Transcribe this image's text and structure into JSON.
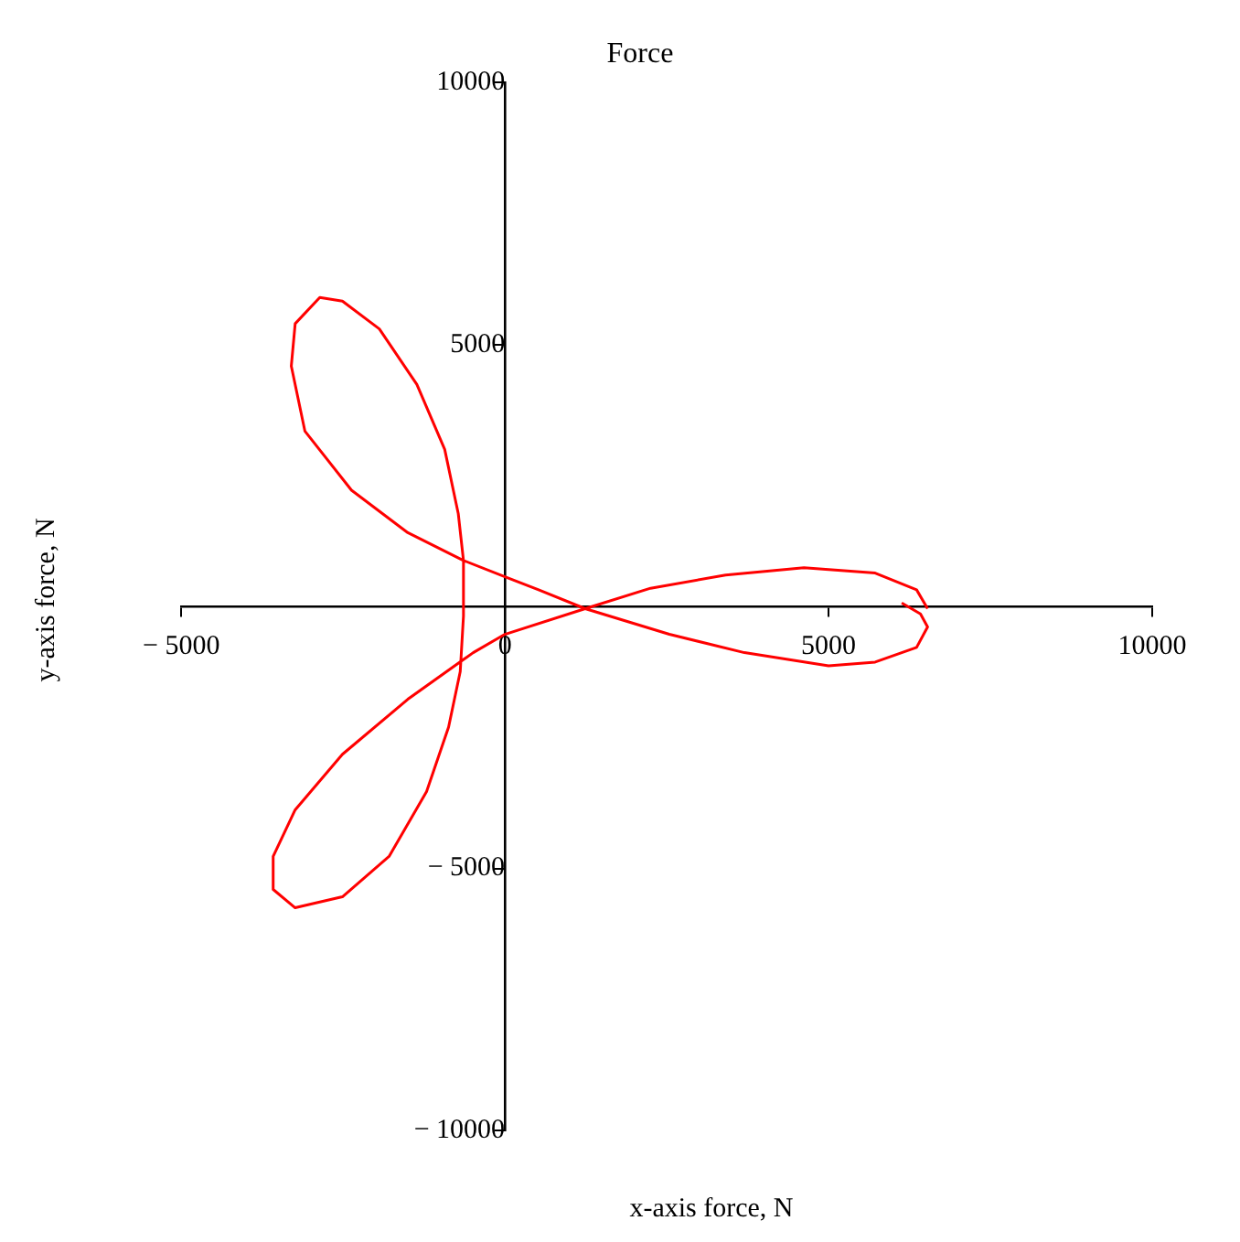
{
  "chart_data": {
    "type": "line",
    "title": "Force",
    "xlabel": "x-axis force, N",
    "ylabel": "y-axis force, N",
    "xlim": [
      -5000,
      10000
    ],
    "ylim": [
      -10000,
      10000
    ],
    "xticks": [
      {
        "value": -5000,
        "label": "− 5000"
      },
      0,
      5000,
      10000
    ],
    "yticks": [
      {
        "value": -10000,
        "label": "− 10000"
      },
      {
        "value": -5000,
        "label": "− 5000"
      },
      {
        "value": 0,
        "label": null
      },
      5000,
      10000
    ],
    "grid": false,
    "legend": false,
    "marker": "none",
    "line_style": "solid",
    "series": [
      {
        "color": "#ff0000",
        "x": [
          6130,
          6420,
          6530,
          6360,
          5720,
          5000,
          3700,
          2540,
          1240,
          520,
          0,
          -640,
          -1500,
          -2370,
          -3090,
          -3300,
          -3240,
          -2860,
          -2510,
          -1940,
          -1360,
          -930,
          -720,
          -640,
          -640,
          -690,
          -870,
          -1210,
          -1790,
          -2510,
          -3240,
          -3580,
          -3580,
          -3240,
          -2510,
          -1500,
          -490,
          0,
          1240,
          2250,
          3410,
          4620,
          5720,
          6360,
          6530
        ],
        "values": [
          70,
          -140,
          -390,
          -780,
          -1060,
          -1130,
          -880,
          -530,
          -40,
          320,
          570,
          880,
          1410,
          2220,
          3350,
          4590,
          5400,
          5900,
          5830,
          5300,
          4240,
          3000,
          1770,
          880,
          -180,
          -1240,
          -2300,
          -3530,
          -4770,
          -5540,
          -5750,
          -5400,
          -4770,
          -3880,
          -2820,
          -1770,
          -880,
          -530,
          -40,
          350,
          600,
          740,
          640,
          320,
          -40
        ]
      }
    ]
  }
}
